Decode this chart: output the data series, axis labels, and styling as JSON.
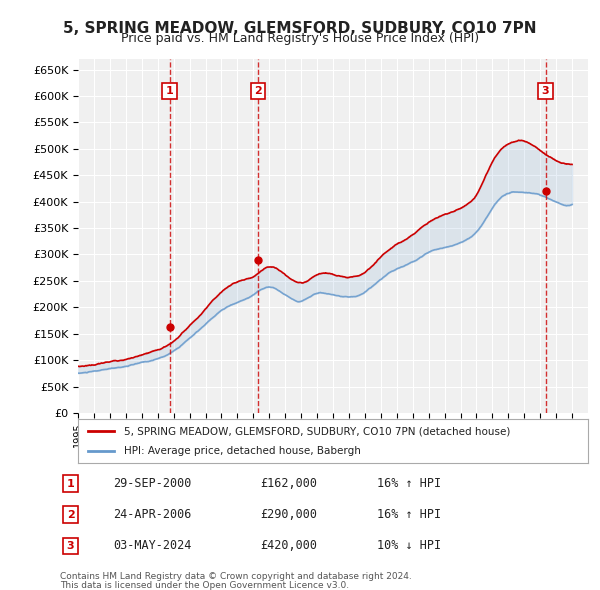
{
  "title": "5, SPRING MEADOW, GLEMSFORD, SUDBURY, CO10 7PN",
  "subtitle": "Price paid vs. HM Land Registry's House Price Index (HPI)",
  "title_fontsize": 11,
  "subtitle_fontsize": 9,
  "ylabel": "",
  "background_color": "#ffffff",
  "plot_bg_color": "#f0f0f0",
  "grid_color": "#ffffff",
  "red_color": "#cc0000",
  "blue_color": "#6699cc",
  "sale_dates": [
    2000.75,
    2006.31,
    2024.34
  ],
  "sale_prices": [
    162000,
    290000,
    420000
  ],
  "sale_labels": [
    "1",
    "2",
    "3"
  ],
  "sale_info": [
    {
      "num": "1",
      "date": "29-SEP-2000",
      "price": "£162,000",
      "note": "16% ↑ HPI"
    },
    {
      "num": "2",
      "date": "24-APR-2006",
      "price": "£290,000",
      "note": "16% ↑ HPI"
    },
    {
      "num": "3",
      "date": "03-MAY-2024",
      "price": "£420,000",
      "note": "10% ↓ HPI"
    }
  ],
  "legend_line1": "5, SPRING MEADOW, GLEMSFORD, SUDBURY, CO10 7PN (detached house)",
  "legend_line2": "HPI: Average price, detached house, Babergh",
  "footer1": "Contains HM Land Registry data © Crown copyright and database right 2024.",
  "footer2": "This data is licensed under the Open Government Licence v3.0.",
  "ylim_min": 0,
  "ylim_max": 670000,
  "xlim_min": 1995.0,
  "xlim_max": 2027.0
}
